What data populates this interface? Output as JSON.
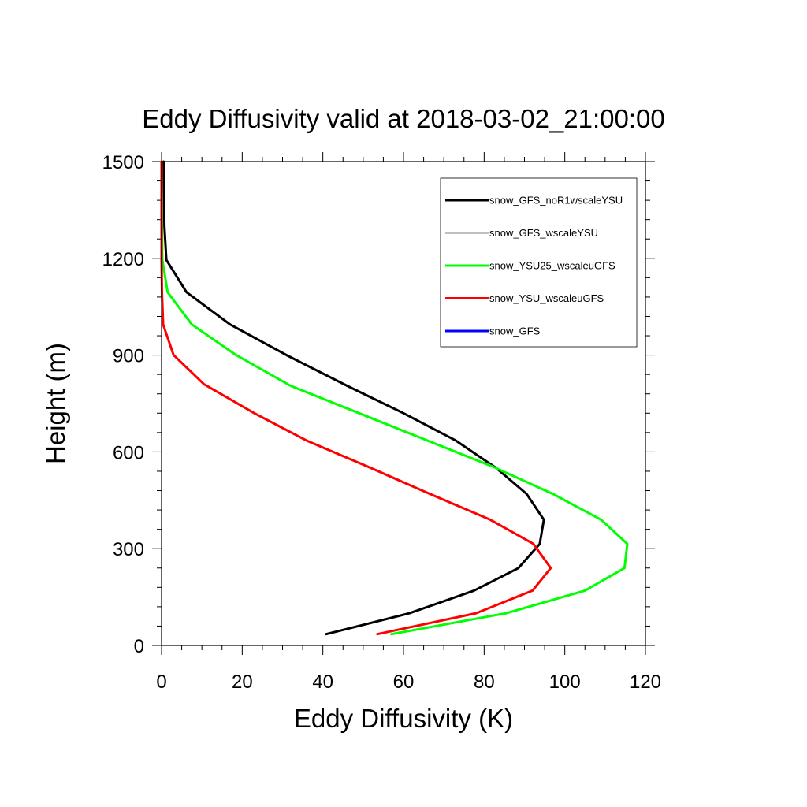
{
  "chart_data": {
    "type": "line",
    "title": "Eddy Diffusivity valid at 2018-03-02_21:00:00",
    "xlabel": "Eddy Diffusivity (K)",
    "ylabel": "Height (m)",
    "xlim": [
      0,
      120
    ],
    "ylim": [
      0,
      1500
    ],
    "x_ticks": [
      0,
      20,
      40,
      60,
      80,
      100,
      120
    ],
    "y_ticks": [
      0,
      300,
      600,
      900,
      1200,
      1500
    ],
    "legend_placement": "top-right",
    "series": [
      {
        "name": "snow_GFS_noR1wscaleYSU",
        "color": "#000000",
        "points": [
          [
            40.8,
            35
          ],
          [
            61.5,
            100
          ],
          [
            77.5,
            170
          ],
          [
            88.5,
            240
          ],
          [
            93.8,
            315
          ],
          [
            94.8,
            390
          ],
          [
            90.5,
            470
          ],
          [
            83,
            550
          ],
          [
            73,
            635
          ],
          [
            60,
            720
          ],
          [
            46,
            805
          ],
          [
            31,
            900
          ],
          [
            17,
            995
          ],
          [
            6.2,
            1095
          ],
          [
            1.2,
            1195
          ],
          [
            0.7,
            1300
          ],
          [
            0.6,
            1400
          ],
          [
            0.5,
            1500
          ]
        ]
      },
      {
        "name": "snow_GFS_wscaleYSU",
        "color": "#c0c0c0",
        "points": []
      },
      {
        "name": "snow_YSU25_wscaleuGFS",
        "color": "#00ff00",
        "points": [
          [
            57,
            35
          ],
          [
            85.5,
            100
          ],
          [
            105,
            170
          ],
          [
            114.8,
            240
          ],
          [
            115.5,
            315
          ],
          [
            109,
            390
          ],
          [
            97,
            470
          ],
          [
            82,
            555
          ],
          [
            66,
            635
          ],
          [
            49,
            720
          ],
          [
            32,
            805
          ],
          [
            18.5,
            900
          ],
          [
            7.5,
            995
          ],
          [
            1.5,
            1095
          ],
          [
            0.2,
            1195
          ],
          [
            0.1,
            1300
          ],
          [
            0.05,
            1400
          ],
          [
            0,
            1500
          ]
        ]
      },
      {
        "name": "snow_YSU_wscaleuGFS",
        "color": "#ff0000",
        "points": [
          [
            53.5,
            35
          ],
          [
            78,
            100
          ],
          [
            92,
            170
          ],
          [
            96.5,
            240
          ],
          [
            92.2,
            315
          ],
          [
            81.5,
            390
          ],
          [
            66.5,
            470
          ],
          [
            51,
            555
          ],
          [
            36,
            635
          ],
          [
            23,
            720
          ],
          [
            10.5,
            810
          ],
          [
            3,
            900
          ],
          [
            0.4,
            995
          ],
          [
            0.1,
            1095
          ],
          [
            0,
            1195
          ],
          [
            0,
            1300
          ],
          [
            0,
            1400
          ],
          [
            0,
            1500
          ]
        ]
      },
      {
        "name": "snow_GFS",
        "color": "#0000ff",
        "points": []
      }
    ]
  }
}
